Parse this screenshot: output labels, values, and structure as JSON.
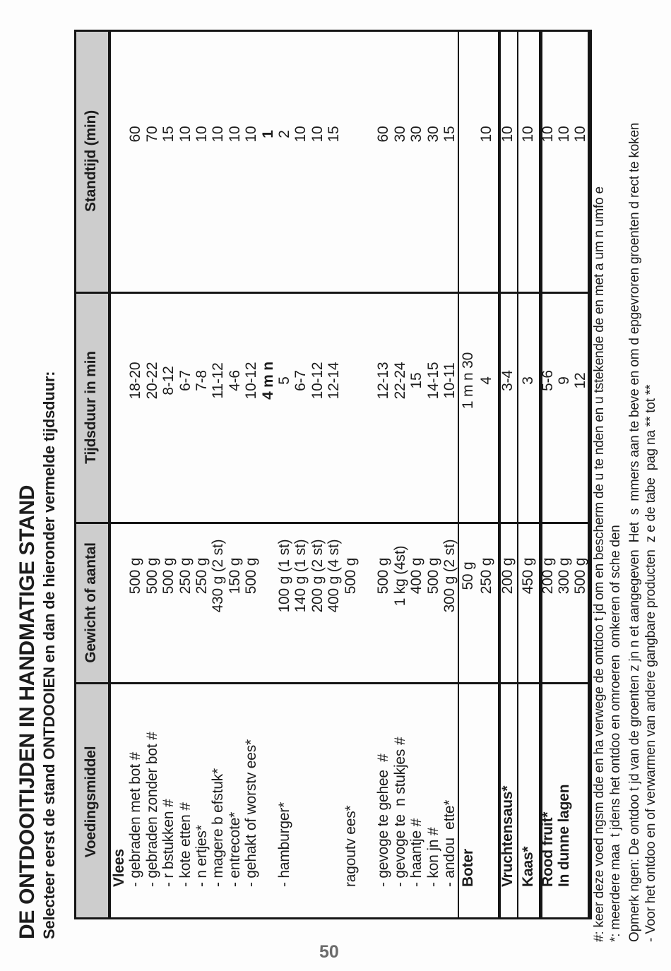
{
  "page": {
    "title_line1": "DE ONTDOOITIJDEN IN HANDMATIGE STAND",
    "title_line2": "Selecteer eerst de stand ONTDOOIEN en dan de hieronder vermelde tijdsduur:",
    "page_number": "50"
  },
  "table": {
    "headers": [
      "Voedingsmiddel",
      "Gewicht of aantal",
      "Tijdsduur in min",
      "Standtijd (min)"
    ],
    "rows": [
      {
        "label": "Vlees",
        "label_bold": true,
        "weight": "",
        "time": "",
        "stand": ""
      },
      {
        "label": "- gebraden met bot #",
        "weight": "500 g",
        "time": "18-20",
        "stand": "60"
      },
      {
        "label": "- gebraden zonder bot #",
        "weight": "500 g",
        "time": "20-22",
        "stand": "70"
      },
      {
        "label": "- r bstukken #",
        "weight": "500 g",
        "time": "8-12",
        "stand": "15"
      },
      {
        "label": "- kote etten #",
        "weight": "250 g",
        "time": "6-7",
        "stand": "10"
      },
      {
        "label": "- n ertjes*",
        "weight": "250 g",
        "time": "7-8",
        "stand": "10"
      },
      {
        "label": "- magere b efstuk*",
        "weight": "430 g (2 st)",
        "time": "11-12",
        "stand": "10"
      },
      {
        "label": "- entrecote*",
        "weight": "150 g",
        "time": "4-6",
        "stand": "10"
      },
      {
        "label": "- gehakt of worstv ees*",
        "weight": "500 g",
        "time": "10-12",
        "stand": "10"
      },
      {
        "label": "",
        "weight": "",
        "time": "4 m n",
        "stand": "1",
        "value_bold": true
      },
      {
        "label": "- hamburger*",
        "weight": "100 g (1 st)",
        "time": "5",
        "stand": "2"
      },
      {
        "label": "",
        "weight": "140 g (1 st)",
        "time": "6-7",
        "stand": "10"
      },
      {
        "label": "",
        "weight": "200 g (2 st)",
        "time": "10-12",
        "stand": "10"
      },
      {
        "label": "",
        "weight": "400 g (4 st)",
        "time": "12-14",
        "stand": "15"
      },
      {
        "label": "ragoutv ees*",
        "weight": "500 g",
        "time": "",
        "stand": ""
      },
      {
        "label": "",
        "weight": "",
        "time": "",
        "stand": ""
      },
      {
        "label": "- gevoge te gehee  #",
        "weight": "500 g",
        "time": "12-13",
        "stand": "60"
      },
      {
        "label": "- gevoge te  n stukjes #",
        "weight": "1 kg (4st)",
        "time": "22-24",
        "stand": "30"
      },
      {
        "label": "- haantje #",
        "weight": "400 g",
        "time": "15",
        "stand": "30"
      },
      {
        "label": "- kon jn #",
        "weight": "500 g",
        "time": "14-15",
        "stand": "30"
      },
      {
        "label": "- andou  ette*",
        "weight": "300 g (2 st)",
        "time": "10-11",
        "stand": "15"
      },
      {
        "label": "Boter",
        "label_bold": true,
        "weight": "50 g",
        "time": "1 m n 30",
        "stand": ""
      },
      {
        "label": "",
        "weight": "250 g",
        "time": "4",
        "stand": "10"
      },
      {
        "label": "Vruchtensaus*",
        "label_bold": true,
        "weight": "200 g",
        "time": "3-4",
        "stand": "10"
      },
      {
        "label": "Kaas*",
        "label_bold": true,
        "weight": "450 g",
        "time": "3",
        "stand": "10"
      },
      {
        "label": "Rood fruit*",
        "label_bold": true,
        "weight": "200 g",
        "time": "5-6",
        "stand": "10"
      },
      {
        "label": "In dunne lagen",
        "label_bold": true,
        "weight": "300 g",
        "time": "9",
        "stand": "10"
      },
      {
        "label": "",
        "weight": "500 g",
        "time": "12",
        "stand": "10"
      }
    ]
  },
  "footnotes": [
    "#: keer deze voed ngsm dde en ha verwege de ontdoo t jd om en bescherm de u te nden en u tstekende de en met a um n umfo e",
    "*: meerdere maa  t jdens het ontdoo en omroeren  omkeren of sche den",
    "Opmerk ngen: De ontdoo t jd van de groenten z jn n et aangegeven  Het  s  mmers aan te beve en om d epgevroren groenten d rect te koken",
    "- Voor het ontdoo en of verwarmen van andere gangbare producten  z e de tabe  pag na ** tot **"
  ],
  "colors": {
    "header_band": "#cdcdcd",
    "text": "#1c1c1c",
    "border": "#151515",
    "page_number": "#6b6b6b"
  }
}
